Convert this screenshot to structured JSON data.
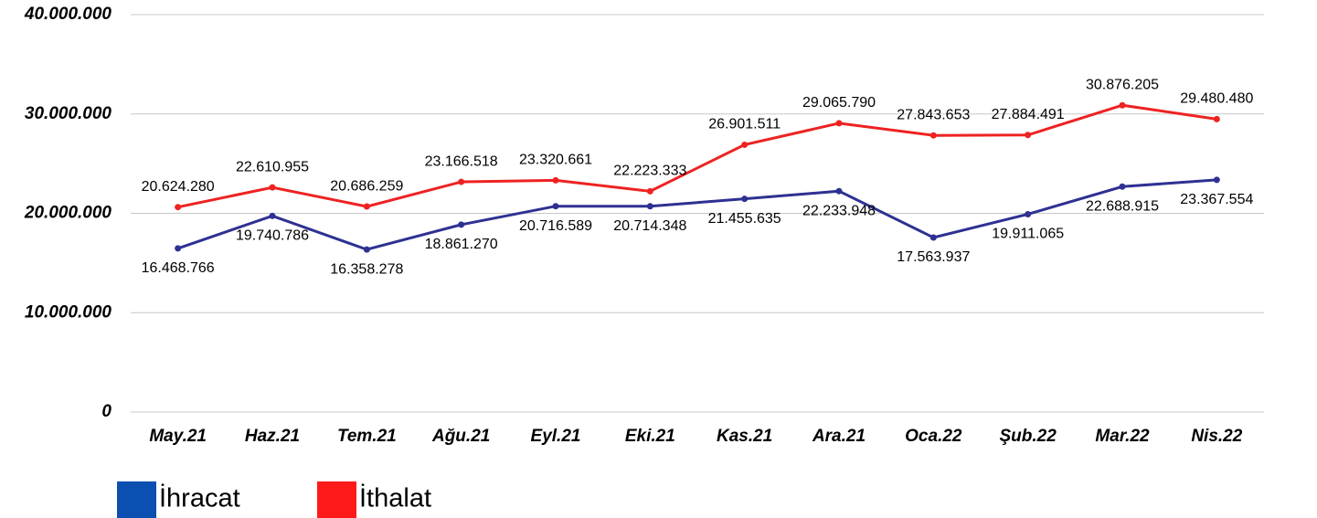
{
  "chart_data": {
    "type": "line",
    "categories": [
      "May.21",
      "Haz.21",
      "Tem.21",
      "Ağu.21",
      "Eyl.21",
      "Eki.21",
      "Kas.21",
      "Ara.21",
      "Oca.22",
      "Şub.22",
      "Mar.22",
      "Nis.22"
    ],
    "series": [
      {
        "name": "İhracat",
        "color": "#2e3192",
        "legend_color": "#0b4fb0",
        "values": [
          16468766,
          19740786,
          16358278,
          18861270,
          20716589,
          20714348,
          21455635,
          22233948,
          17563937,
          19911065,
          22688915,
          23367554
        ],
        "value_labels": [
          "16.468.766",
          "19.740.786",
          "16.358.278",
          "18.861.270",
          "20.716.589",
          "20.714.348",
          "21.455.635",
          "22.233.948",
          "17.563.937",
          "19.911.065",
          "22.688.915",
          "23.367.554"
        ]
      },
      {
        "name": "İthalat",
        "color": "#ee2222",
        "legend_color": "#ff1a1a",
        "values": [
          20624280,
          22610955,
          20686259,
          23166518,
          23320661,
          22223333,
          26901511,
          29065790,
          27843653,
          27884491,
          30876205,
          29480480
        ],
        "value_labels": [
          "20.624.280",
          "22.610.955",
          "20.686.259",
          "23.166.518",
          "23.320.661",
          "22.223.333",
          "26.901.511",
          "29.065.790",
          "27.843.653",
          "27.884.491",
          "30.876.205",
          "29.480.480"
        ]
      }
    ],
    "ylim": [
      0,
      40000000
    ],
    "yticks": [
      0,
      {
        "value": 10000000,
        "label": "10.000.000"
      },
      {
        "value": 20000000,
        "label": "20.000.000"
      },
      {
        "value": 30000000,
        "label": "30.000.000"
      },
      {
        "value": 40000000,
        "label": "40.000.000"
      }
    ],
    "grid": true,
    "legend": "bottom-left"
  }
}
